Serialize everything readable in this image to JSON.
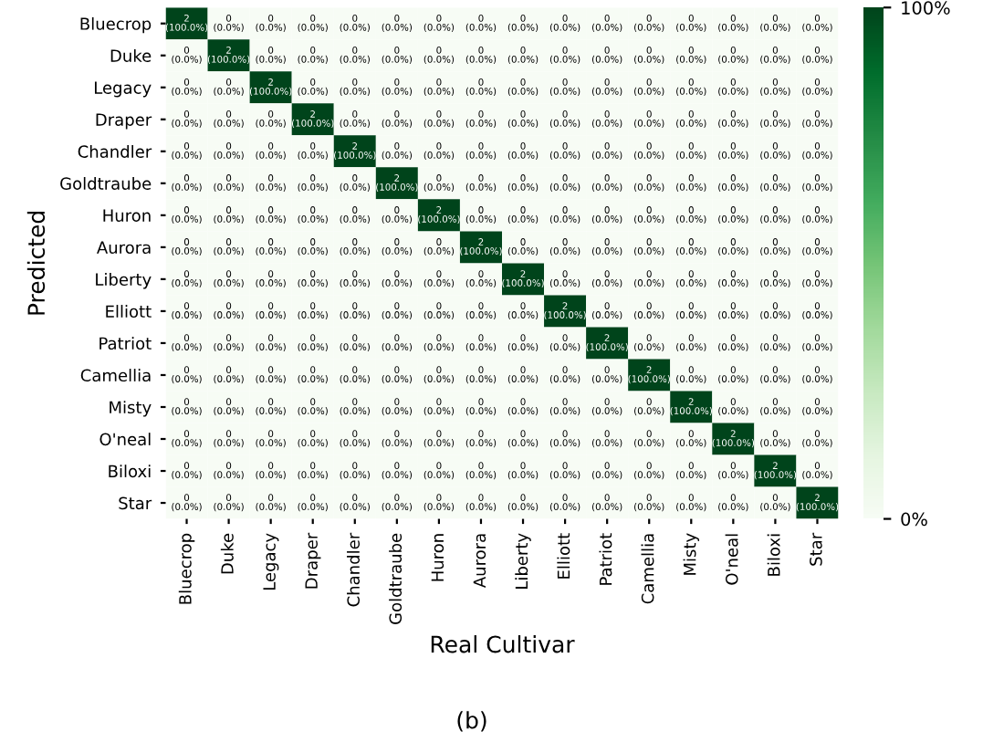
{
  "chart_data": {
    "type": "heatmap",
    "xlabel": "Real Cultivar",
    "ylabel": "Predicted",
    "categories": [
      "Bluecrop",
      "Duke",
      "Legacy",
      "Draper",
      "Chandler",
      "Goldtraube",
      "Huron",
      "Aurora",
      "Liberty",
      "Elliott",
      "Patriot",
      "Camellia",
      "Misty",
      "O'neal",
      "Biloxi",
      "Star"
    ],
    "y_categories": [
      "Bluecrop",
      "Duke",
      "Legacy",
      "Draper",
      "Chandler",
      "Goldtraube",
      "Huron",
      "Aurora",
      "Liberty",
      "Elliott",
      "Patriot",
      "Camellia",
      "Misty",
      "O'neal",
      "Biloxi",
      "Star"
    ],
    "cells": [
      [
        100,
        0,
        0,
        0,
        0,
        0,
        0,
        0,
        0,
        0,
        0,
        0,
        0,
        0,
        0,
        0
      ],
      [
        0,
        100,
        0,
        0,
        0,
        0,
        0,
        0,
        0,
        0,
        0,
        0,
        0,
        0,
        0,
        0
      ],
      [
        0,
        0,
        100,
        0,
        0,
        0,
        0,
        0,
        0,
        0,
        0,
        0,
        0,
        0,
        0,
        0
      ],
      [
        0,
        0,
        0,
        100,
        0,
        0,
        0,
        0,
        0,
        0,
        0,
        0,
        0,
        0,
        0,
        0
      ],
      [
        0,
        0,
        0,
        0,
        100,
        0,
        0,
        0,
        0,
        0,
        0,
        0,
        0,
        0,
        0,
        0
      ],
      [
        0,
        0,
        0,
        0,
        0,
        100,
        0,
        0,
        0,
        0,
        0,
        0,
        0,
        0,
        0,
        0
      ],
      [
        0,
        0,
        0,
        0,
        0,
        0,
        100,
        0,
        0,
        0,
        0,
        0,
        0,
        0,
        0,
        0
      ],
      [
        0,
        0,
        0,
        0,
        0,
        0,
        0,
        100,
        0,
        0,
        0,
        0,
        0,
        0,
        0,
        0
      ],
      [
        0,
        0,
        0,
        0,
        0,
        0,
        0,
        0,
        100,
        0,
        0,
        0,
        0,
        0,
        0,
        0
      ],
      [
        0,
        0,
        0,
        0,
        0,
        0,
        0,
        0,
        0,
        100,
        0,
        0,
        0,
        0,
        0,
        0
      ],
      [
        0,
        0,
        0,
        0,
        0,
        0,
        0,
        0,
        0,
        0,
        100,
        0,
        0,
        0,
        0,
        0
      ],
      [
        0,
        0,
        0,
        0,
        0,
        0,
        0,
        0,
        0,
        0,
        0,
        100,
        0,
        0,
        0,
        0
      ],
      [
        0,
        0,
        0,
        0,
        0,
        0,
        0,
        0,
        0,
        0,
        0,
        0,
        100,
        0,
        0,
        0
      ],
      [
        0,
        0,
        0,
        0,
        0,
        0,
        0,
        0,
        0,
        0,
        0,
        0,
        0,
        100,
        0,
        0
      ],
      [
        0,
        0,
        0,
        0,
        0,
        0,
        0,
        0,
        0,
        0,
        0,
        0,
        0,
        0,
        100,
        0
      ],
      [
        0,
        0,
        0,
        0,
        0,
        0,
        0,
        0,
        0,
        0,
        0,
        0,
        0,
        0,
        0,
        100
      ]
    ],
    "cell_labels": [
      [
        "2\n(100.0%)",
        "0\n(0.0%)",
        "0\n(0.0%)",
        "0\n(0.0%)",
        "0\n(0.0%)",
        "0\n(0.0%)",
        "0\n(0.0%)",
        "0\n(0.0%)",
        "0\n(0.0%)",
        "0\n(0.0%)",
        "0\n(0.0%)",
        "0\n(0.0%)",
        "0\n(0.0%)",
        "0\n(0.0%)",
        "0\n(0.0%)",
        "0\n(0.0%)"
      ],
      [
        "0\n(0.0%)",
        "2\n(100.0%)",
        "0\n(0.0%)",
        "0\n(0.0%)",
        "0\n(0.0%)",
        "0\n(0.0%)",
        "0\n(0.0%)",
        "0\n(0.0%)",
        "0\n(0.0%)",
        "0\n(0.0%)",
        "0\n(0.0%)",
        "0\n(0.0%)",
        "0\n(0.0%)",
        "0\n(0.0%)",
        "0\n(0.0%)",
        "0\n(0.0%)"
      ],
      [
        "0\n(0.0%)",
        "0\n(0.0%)",
        "2\n(100.0%)",
        "0\n(0.0%)",
        "0\n(0.0%)",
        "0\n(0.0%)",
        "0\n(0.0%)",
        "0\n(0.0%)",
        "0\n(0.0%)",
        "0\n(0.0%)",
        "0\n(0.0%)",
        "0\n(0.0%)",
        "0\n(0.0%)",
        "0\n(0.0%)",
        "0\n(0.0%)",
        "0\n(0.0%)"
      ],
      [
        "0\n(0.0%)",
        "0\n(0.0%)",
        "0\n(0.0%)",
        "2\n(100.0%)",
        "0\n(0.0%)",
        "0\n(0.0%)",
        "0\n(0.0%)",
        "0\n(0.0%)",
        "0\n(0.0%)",
        "0\n(0.0%)",
        "0\n(0.0%)",
        "0\n(0.0%)",
        "0\n(0.0%)",
        "0\n(0.0%)",
        "0\n(0.0%)",
        "0\n(0.0%)"
      ],
      [
        "0\n(0.0%)",
        "0\n(0.0%)",
        "0\n(0.0%)",
        "0\n(0.0%)",
        "2\n(100.0%)",
        "0\n(0.0%)",
        "0\n(0.0%)",
        "0\n(0.0%)",
        "0\n(0.0%)",
        "0\n(0.0%)",
        "0\n(0.0%)",
        "0\n(0.0%)",
        "0\n(0.0%)",
        "0\n(0.0%)",
        "0\n(0.0%)",
        "0\n(0.0%)"
      ],
      [
        "0\n(0.0%)",
        "0\n(0.0%)",
        "0\n(0.0%)",
        "0\n(0.0%)",
        "0\n(0.0%)",
        "2\n(100.0%)",
        "0\n(0.0%)",
        "0\n(0.0%)",
        "0\n(0.0%)",
        "0\n(0.0%)",
        "0\n(0.0%)",
        "0\n(0.0%)",
        "0\n(0.0%)",
        "0\n(0.0%)",
        "0\n(0.0%)",
        "0\n(0.0%)"
      ],
      [
        "0\n(0.0%)",
        "0\n(0.0%)",
        "0\n(0.0%)",
        "0\n(0.0%)",
        "0\n(0.0%)",
        "0\n(0.0%)",
        "2\n(100.0%)",
        "0\n(0.0%)",
        "0\n(0.0%)",
        "0\n(0.0%)",
        "0\n(0.0%)",
        "0\n(0.0%)",
        "0\n(0.0%)",
        "0\n(0.0%)",
        "0\n(0.0%)",
        "0\n(0.0%)"
      ],
      [
        "0\n(0.0%)",
        "0\n(0.0%)",
        "0\n(0.0%)",
        "0\n(0.0%)",
        "0\n(0.0%)",
        "0\n(0.0%)",
        "0\n(0.0%)",
        "2\n(100.0%)",
        "0\n(0.0%)",
        "0\n(0.0%)",
        "0\n(0.0%)",
        "0\n(0.0%)",
        "0\n(0.0%)",
        "0\n(0.0%)",
        "0\n(0.0%)",
        "0\n(0.0%)"
      ],
      [
        "0\n(0.0%)",
        "0\n(0.0%)",
        "0\n(0.0%)",
        "0\n(0.0%)",
        "0\n(0.0%)",
        "0\n(0.0%)",
        "0\n(0.0%)",
        "0\n(0.0%)",
        "2\n(100.0%)",
        "0\n(0.0%)",
        "0\n(0.0%)",
        "0\n(0.0%)",
        "0\n(0.0%)",
        "0\n(0.0%)",
        "0\n(0.0%)",
        "0\n(0.0%)"
      ],
      [
        "0\n(0.0%)",
        "0\n(0.0%)",
        "0\n(0.0%)",
        "0\n(0.0%)",
        "0\n(0.0%)",
        "0\n(0.0%)",
        "0\n(0.0%)",
        "0\n(0.0%)",
        "0\n(0.0%)",
        "2\n(100.0%)",
        "0\n(0.0%)",
        "0\n(0.0%)",
        "0\n(0.0%)",
        "0\n(0.0%)",
        "0\n(0.0%)",
        "0\n(0.0%)"
      ],
      [
        "0\n(0.0%)",
        "0\n(0.0%)",
        "0\n(0.0%)",
        "0\n(0.0%)",
        "0\n(0.0%)",
        "0\n(0.0%)",
        "0\n(0.0%)",
        "0\n(0.0%)",
        "0\n(0.0%)",
        "0\n(0.0%)",
        "2\n(100.0%)",
        "0\n(0.0%)",
        "0\n(0.0%)",
        "0\n(0.0%)",
        "0\n(0.0%)",
        "0\n(0.0%)"
      ],
      [
        "0\n(0.0%)",
        "0\n(0.0%)",
        "0\n(0.0%)",
        "0\n(0.0%)",
        "0\n(0.0%)",
        "0\n(0.0%)",
        "0\n(0.0%)",
        "0\n(0.0%)",
        "0\n(0.0%)",
        "0\n(0.0%)",
        "0\n(0.0%)",
        "2\n(100.0%)",
        "0\n(0.0%)",
        "0\n(0.0%)",
        "0\n(0.0%)",
        "0\n(0.0%)"
      ],
      [
        "0\n(0.0%)",
        "0\n(0.0%)",
        "0\n(0.0%)",
        "0\n(0.0%)",
        "0\n(0.0%)",
        "0\n(0.0%)",
        "0\n(0.0%)",
        "0\n(0.0%)",
        "0\n(0.0%)",
        "0\n(0.0%)",
        "0\n(0.0%)",
        "0\n(0.0%)",
        "2\n(100.0%)",
        "0\n(0.0%)",
        "0\n(0.0%)",
        "0\n(0.0%)"
      ],
      [
        "0\n(0.0%)",
        "0\n(0.0%)",
        "0\n(0.0%)",
        "0\n(0.0%)",
        "0\n(0.0%)",
        "0\n(0.0%)",
        "0\n(0.0%)",
        "0\n(0.0%)",
        "0\n(0.0%)",
        "0\n(0.0%)",
        "0\n(0.0%)",
        "0\n(0.0%)",
        "0\n(0.0%)",
        "2\n(100.0%)",
        "0\n(0.0%)",
        "0\n(0.0%)"
      ],
      [
        "0\n(0.0%)",
        "0\n(0.0%)",
        "0\n(0.0%)",
        "0\n(0.0%)",
        "0\n(0.0%)",
        "0\n(0.0%)",
        "0\n(0.0%)",
        "0\n(0.0%)",
        "0\n(0.0%)",
        "0\n(0.0%)",
        "0\n(0.0%)",
        "0\n(0.0%)",
        "0\n(0.0%)",
        "0\n(0.0%)",
        "2\n(100.0%)",
        "0\n(0.0%)"
      ],
      [
        "0\n(0.0%)",
        "0\n(0.0%)",
        "0\n(0.0%)",
        "0\n(0.0%)",
        "0\n(0.0%)",
        "0\n(0.0%)",
        "0\n(0.0%)",
        "0\n(0.0%)",
        "0\n(0.0%)",
        "0\n(0.0%)",
        "0\n(0.0%)",
        "0\n(0.0%)",
        "0\n(0.0%)",
        "0\n(0.0%)",
        "0\n(0.0%)",
        "2\n(100.0%)"
      ]
    ],
    "clim": [
      0,
      100
    ],
    "cticks": [
      {
        "value": 0,
        "label": "0%"
      },
      {
        "value": 100,
        "label": "100%"
      }
    ],
    "annotations": [
      "(b)"
    ]
  }
}
